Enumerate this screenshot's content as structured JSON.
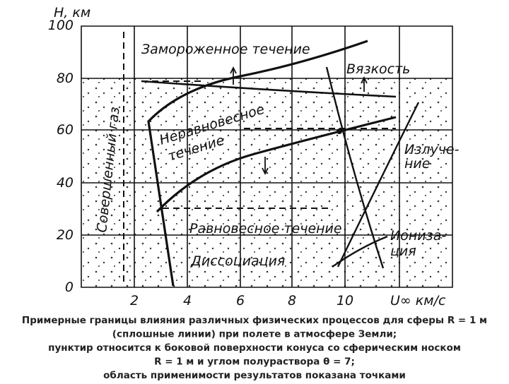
{
  "axes": {
    "y_label": "H, км",
    "y_ticks": [
      "100",
      "80",
      "60",
      "40",
      "20",
      "0"
    ],
    "x_ticks": [
      "2",
      "4",
      "6",
      "8",
      "10"
    ],
    "x_label": "U∞ км/с"
  },
  "regions": {
    "frozen": "Замороженное течение",
    "viscosity": "Вязкость",
    "nonequilibrium": [
      "Неравновесное",
      "течение"
    ],
    "perfect_gas": "Совершенный газ",
    "radiation": [
      "Излуче-",
      "ние"
    ],
    "equilibrium": "Равновесное течение",
    "ionization": [
      "Иониза-",
      "ция"
    ],
    "dissociation": "Диссоциация"
  },
  "caption": [
    "Примерные границы влияния различных физических процессов для сферы R = 1 м",
    "(сплошные линии) при полете в атмосфере Земли;",
    "пунктир относится к боковой поверхности конуса со сферическим носком",
    "R = 1 м и углом полураствора θ = 7;",
    "область применимости результатов показана точками"
  ]
}
